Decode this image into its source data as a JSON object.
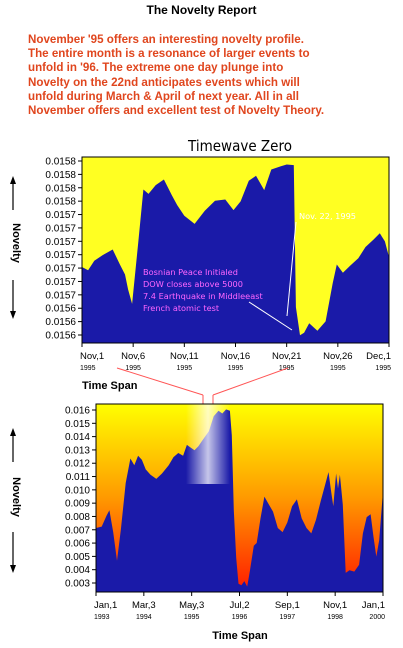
{
  "page": {
    "title": "The Novelty Report",
    "intro_lines": [
      "November '95 offers an interesting novelty profile.",
      " The entire month is a resonance of larger events to",
      "unfold in '96.  The extreme one day plunge into",
      "Novelty on the 22nd anticipates events which will",
      "unfold during March & April of next year.  All in all",
      "November offers and excellent test of Novelty Theory."
    ]
  },
  "chart_data": [
    {
      "type": "area",
      "title": "Timewave Zero",
      "xlabel": "Time Span",
      "ylabel": "Novelty",
      "background": "#ffff22",
      "fill_color": "#1a1aa8",
      "y_ticks": [
        "0.0158",
        "0.0158",
        "0.0158",
        "0.0158",
        "0.0157",
        "0.0157",
        "0.0157",
        "0.0157",
        "0.0157",
        "0.0157",
        "0.0157",
        "0.0156",
        "0.0156",
        "0.0156"
      ],
      "x_ticks": [
        {
          "label": "Nov,1",
          "year": "1995",
          "day": 1
        },
        {
          "label": "Nov,6",
          "year": "1995",
          "day": 6
        },
        {
          "label": "Nov,11",
          "year": "1995",
          "day": 11
        },
        {
          "label": "Nov,16",
          "year": "1995",
          "day": 16
        },
        {
          "label": "Nov,21",
          "year": "1995",
          "day": 21
        },
        {
          "label": "Nov,26",
          "year": "1995",
          "day": 26
        },
        {
          "label": "Dec,1",
          "year": "1995",
          "day": 31
        }
      ],
      "x_range": [
        1,
        31
      ],
      "y_range": [
        0.0155525,
        0.01585
      ],
      "series": [
        {
          "values": [
            [
              1.0,
              0.015674
            ],
            [
              1.6,
              0.015669
            ],
            [
              2.2,
              0.015684
            ],
            [
              3.0,
              0.015693
            ],
            [
              4.0,
              0.015702
            ],
            [
              4.7,
              0.015678
            ],
            [
              5.2,
              0.015662
            ],
            [
              5.5,
              0.015638
            ],
            [
              5.9,
              0.015615
            ],
            [
              6.5,
              0.015714
            ],
            [
              7.0,
              0.015798
            ],
            [
              7.5,
              0.015791
            ],
            [
              8.2,
              0.015805
            ],
            [
              9.0,
              0.015814
            ],
            [
              9.8,
              0.015788
            ],
            [
              10.3,
              0.015773
            ],
            [
              11.0,
              0.015756
            ],
            [
              12.0,
              0.015743
            ],
            [
              13.0,
              0.015764
            ],
            [
              14.0,
              0.01578
            ],
            [
              15.0,
              0.015782
            ],
            [
              15.8,
              0.015765
            ],
            [
              16.5,
              0.015779
            ],
            [
              17.3,
              0.015812
            ],
            [
              18.0,
              0.01582
            ],
            [
              18.8,
              0.015797
            ],
            [
              19.5,
              0.01583
            ],
            [
              20.4,
              0.015835
            ],
            [
              21.0,
              0.015838
            ],
            [
              21.7,
              0.015837
            ],
            [
              21.9,
              0.01561
            ],
            [
              22.3,
              0.015565
            ],
            [
              22.7,
              0.015569
            ],
            [
              23.2,
              0.015584
            ],
            [
              24.0,
              0.015572
            ],
            [
              24.8,
              0.015587
            ],
            [
              25.5,
              0.015648
            ],
            [
              25.9,
              0.015678
            ],
            [
              26.5,
              0.015665
            ],
            [
              27.2,
              0.015676
            ],
            [
              28.0,
              0.015688
            ],
            [
              28.7,
              0.015706
            ],
            [
              29.5,
              0.015718
            ],
            [
              30.1,
              0.015728
            ],
            [
              30.6,
              0.015715
            ],
            [
              31.0,
              0.01569
            ]
          ]
        }
      ],
      "annotations": [
        {
          "text": "Nov. 22, 1995",
          "color": "white"
        },
        {
          "text": "Bosnian Peace Initialed",
          "color": "pink"
        },
        {
          "text": "DOW closes above 5000",
          "color": "pink"
        },
        {
          "text": "7.4 Earthquake in Middleeast",
          "color": "pink"
        },
        {
          "text": "French atomic test",
          "color": "pink"
        }
      ]
    },
    {
      "type": "area",
      "xlabel": "Time Span",
      "ylabel": "Novelty",
      "background_gradient": [
        "#ffff00",
        "#ff9900",
        "#ff1a00"
      ],
      "fill_color": "#1a1aa8",
      "y_ticks": [
        "0.016",
        "0.015",
        "0.014",
        "0.013",
        "0.012",
        "0.011",
        "0.010",
        "0.009",
        "0.008",
        "0.007",
        "0.006",
        "0.005",
        "0.004",
        "0.003"
      ],
      "x_ticks": [
        {
          "label": "Jan,1",
          "year": "1993",
          "t": 0
        },
        {
          "label": "Mar,3",
          "year": "1994",
          "t": 1
        },
        {
          "label": "May,3",
          "year": "1995",
          "t": 2
        },
        {
          "label": "Jul,2",
          "year": "1996",
          "t": 3
        },
        {
          "label": "Sep,1",
          "year": "1997",
          "t": 4
        },
        {
          "label": "Nov,1",
          "year": "1998",
          "t": 5
        },
        {
          "label": "Jan,1",
          "year": "2000",
          "t": 6
        }
      ],
      "x_range": [
        0,
        6
      ],
      "y_range": [
        0.0025,
        0.0163
      ],
      "series": [
        {
          "values": [
            [
              0.0,
              0.0072
            ],
            [
              0.12,
              0.0073
            ],
            [
              0.22,
              0.0081
            ],
            [
              0.28,
              0.0085
            ],
            [
              0.36,
              0.0069
            ],
            [
              0.44,
              0.0048
            ],
            [
              0.52,
              0.0071
            ],
            [
              0.62,
              0.0105
            ],
            [
              0.72,
              0.0123
            ],
            [
              0.8,
              0.0118
            ],
            [
              0.88,
              0.0125
            ],
            [
              0.96,
              0.0122
            ],
            [
              1.04,
              0.0115
            ],
            [
              1.14,
              0.0111
            ],
            [
              1.26,
              0.0108
            ],
            [
              1.38,
              0.0112
            ],
            [
              1.52,
              0.0118
            ],
            [
              1.62,
              0.0124
            ],
            [
              1.72,
              0.0127
            ],
            [
              1.82,
              0.0125
            ],
            [
              1.9,
              0.0133
            ],
            [
              1.98,
              0.0131
            ],
            [
              2.06,
              0.0129
            ],
            [
              2.14,
              0.0132
            ],
            [
              2.24,
              0.0137
            ],
            [
              2.36,
              0.0143
            ],
            [
              2.46,
              0.0154
            ],
            [
              2.56,
              0.0158
            ],
            [
              2.64,
              0.0156
            ],
            [
              2.72,
              0.0159
            ],
            [
              2.8,
              0.0158
            ],
            [
              2.84,
              0.014
            ],
            [
              2.88,
              0.0085
            ],
            [
              2.93,
              0.005
            ],
            [
              2.98,
              0.0031
            ],
            [
              3.04,
              0.003
            ],
            [
              3.1,
              0.0033
            ],
            [
              3.16,
              0.0029
            ],
            [
              3.22,
              0.0041
            ],
            [
              3.3,
              0.0059
            ],
            [
              3.36,
              0.0061
            ],
            [
              3.44,
              0.0079
            ],
            [
              3.52,
              0.0095
            ],
            [
              3.6,
              0.009
            ],
            [
              3.7,
              0.0084
            ],
            [
              3.8,
              0.0072
            ],
            [
              3.9,
              0.0069
            ],
            [
              4.0,
              0.0076
            ],
            [
              4.1,
              0.0088
            ],
            [
              4.2,
              0.0093
            ],
            [
              4.3,
              0.0079
            ],
            [
              4.4,
              0.0072
            ],
            [
              4.5,
              0.0068
            ],
            [
              4.6,
              0.0078
            ],
            [
              4.7,
              0.0092
            ],
            [
              4.8,
              0.0105
            ],
            [
              4.86,
              0.0113
            ],
            [
              4.92,
              0.0098
            ],
            [
              4.96,
              0.0088
            ],
            [
              5.02,
              0.0112
            ],
            [
              5.06,
              0.0101
            ],
            [
              5.1,
              0.0111
            ],
            [
              5.16,
              0.0089
            ],
            [
              5.22,
              0.0039
            ],
            [
              5.3,
              0.0041
            ],
            [
              5.4,
              0.004
            ],
            [
              5.5,
              0.0045
            ],
            [
              5.58,
              0.0068
            ],
            [
              5.66,
              0.008
            ],
            [
              5.74,
              0.0082
            ],
            [
              5.8,
              0.0066
            ],
            [
              5.86,
              0.0051
            ],
            [
              5.92,
              0.0063
            ],
            [
              6.0,
              0.0099
            ]
          ]
        }
      ]
    }
  ]
}
